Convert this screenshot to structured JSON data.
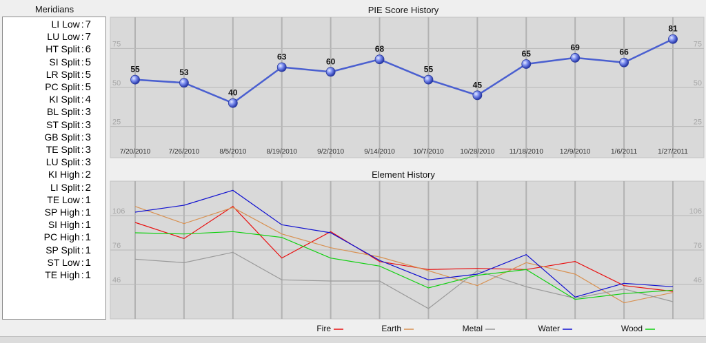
{
  "meridians": {
    "title": "Meridians",
    "items": [
      {
        "name": "LI Low",
        "value": "7"
      },
      {
        "name": "LU Low",
        "value": "7"
      },
      {
        "name": "HT Split",
        "value": "6"
      },
      {
        "name": "SI Split",
        "value": "5"
      },
      {
        "name": "LR Split",
        "value": "5"
      },
      {
        "name": "PC Split",
        "value": "5"
      },
      {
        "name": "KI Split",
        "value": "4"
      },
      {
        "name": "BL Split",
        "value": "3"
      },
      {
        "name": "ST Split",
        "value": "3"
      },
      {
        "name": "GB Split",
        "value": "3"
      },
      {
        "name": "TE Split",
        "value": "3"
      },
      {
        "name": "LU Split",
        "value": "3"
      },
      {
        "name": "KI High",
        "value": "2"
      },
      {
        "name": "LI Split",
        "value": "2"
      },
      {
        "name": "TE Low",
        "value": "1"
      },
      {
        "name": "SP High",
        "value": "1"
      },
      {
        "name": "SI High",
        "value": "1"
      },
      {
        "name": "PC High",
        "value": "1"
      },
      {
        "name": "SP Split",
        "value": "1"
      },
      {
        "name": "ST Low",
        "value": "1"
      },
      {
        "name": "TE High",
        "value": "1"
      }
    ]
  },
  "chart_data": [
    {
      "type": "line",
      "title": "PIE Score History",
      "categories": [
        "7/20/2010",
        "7/26/2010",
        "8/5/2010",
        "8/19/2010",
        "9/2/2010",
        "9/14/2010",
        "10/7/2010",
        "10/28/2010",
        "11/18/2010",
        "12/9/2010",
        "1/6/2011",
        "1/27/2011"
      ],
      "series": [
        {
          "values": [
            55,
            53,
            40,
            63,
            60,
            68,
            55,
            45,
            65,
            69,
            66,
            81
          ],
          "color": "#4a5fd0"
        }
      ],
      "data_labels": [
        "55",
        "53",
        "40",
        "63",
        "60",
        "68",
        "55",
        "45",
        "65",
        "69",
        "66",
        "81"
      ],
      "yticks": [
        25,
        50,
        75
      ],
      "ytick_labels": [
        "25",
        "50",
        "75"
      ],
      "ylim": [
        5,
        95
      ],
      "grid": true
    },
    {
      "type": "line",
      "title": "Element History",
      "categories_count": 12,
      "yticks": [
        46,
        76,
        106
      ],
      "ytick_labels": [
        "46",
        "76",
        "106"
      ],
      "ylim": [
        16,
        136
      ],
      "grid": true,
      "legend_position": "bottom",
      "series": [
        {
          "name": "Fire",
          "color": "#e81010",
          "values": [
            100,
            86,
            114,
            69,
            92,
            66,
            59,
            60,
            59,
            66,
            45,
            40
          ]
        },
        {
          "name": "Earth",
          "color": "#d89050",
          "values": [
            114,
            99,
            113,
            90,
            78,
            70,
            58,
            45,
            65,
            55,
            30,
            39
          ]
        },
        {
          "name": "Metal",
          "color": "#999999",
          "values": [
            68,
            65,
            74,
            50,
            49,
            49,
            25,
            58,
            44,
            34,
            42,
            31
          ]
        },
        {
          "name": "Water",
          "color": "#1010d0",
          "values": [
            109,
            115,
            128,
            98,
            91,
            67,
            50,
            55,
            72,
            35,
            47,
            44
          ]
        },
        {
          "name": "Wood",
          "color": "#10d010",
          "values": [
            91,
            90,
            92,
            87,
            69,
            62,
            43,
            54,
            59,
            33,
            38,
            41
          ]
        }
      ]
    }
  ]
}
